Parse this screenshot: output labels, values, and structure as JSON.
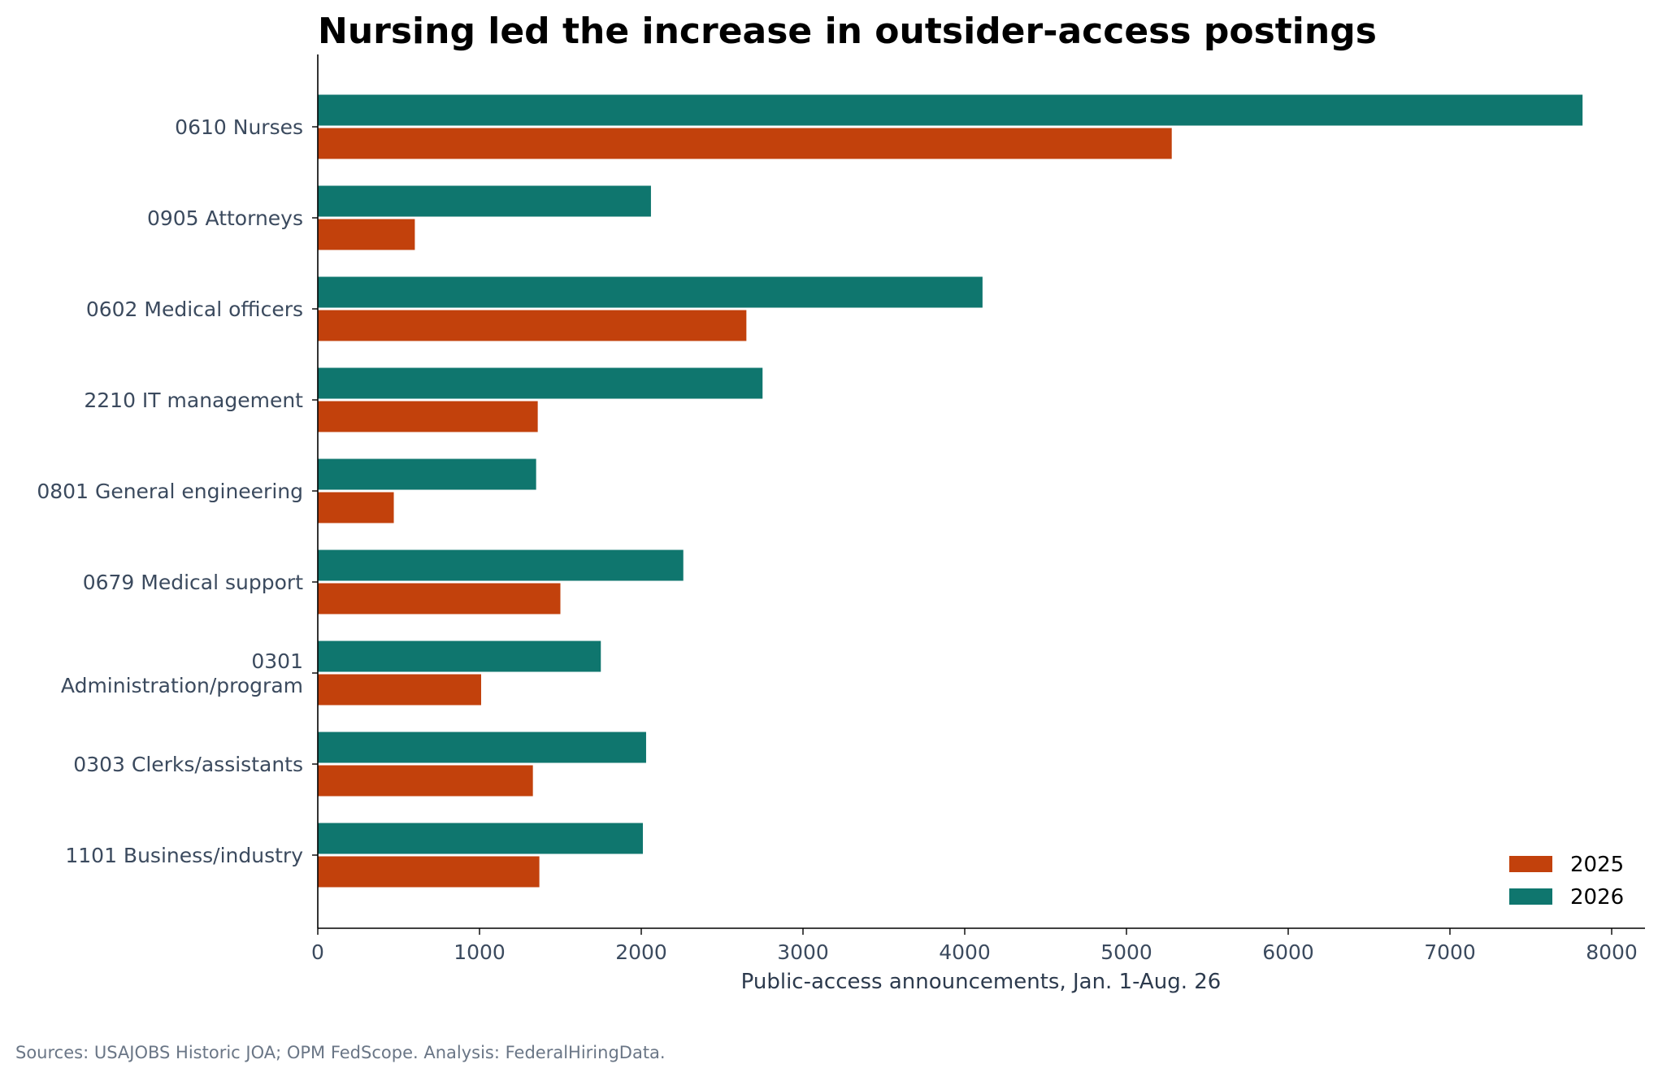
{
  "chart_data": {
    "type": "bar",
    "orientation": "horizontal",
    "title": "Nursing led the increase in outsider-access postings",
    "xlabel": "Public-access announcements, Jan. 1-Aug. 26",
    "ylabel": "",
    "source": "Sources: USAJOBS Historic JOA; OPM FedScope. Analysis: FederalHiringData.",
    "categories": [
      [
        "0610 Nurses"
      ],
      [
        "0905 Attorneys"
      ],
      [
        "0602 Medical officers"
      ],
      [
        "2210 IT management"
      ],
      [
        "0801 General engineering"
      ],
      [
        "0679 Medical support"
      ],
      [
        "0301",
        "Administration/program"
      ],
      [
        "0303 Clerks/assistants"
      ],
      [
        "1101 Business/industry"
      ]
    ],
    "series": [
      {
        "name": "2025",
        "color": "#c2410c",
        "values": [
          5280,
          600,
          2650,
          1360,
          470,
          1500,
          1010,
          1330,
          1370
        ]
      },
      {
        "name": "2026",
        "color": "#0f766e",
        "values": [
          7820,
          2060,
          4110,
          2750,
          1350,
          2260,
          1750,
          2030,
          2010
        ]
      }
    ],
    "xlim": [
      0,
      8200
    ],
    "xticks": [
      "0",
      "1000",
      "2000",
      "3000",
      "4000",
      "5000",
      "6000",
      "7000",
      "8000"
    ],
    "grid": false,
    "legend": {
      "position": "lower-right",
      "order": [
        "2025",
        "2026"
      ]
    }
  }
}
